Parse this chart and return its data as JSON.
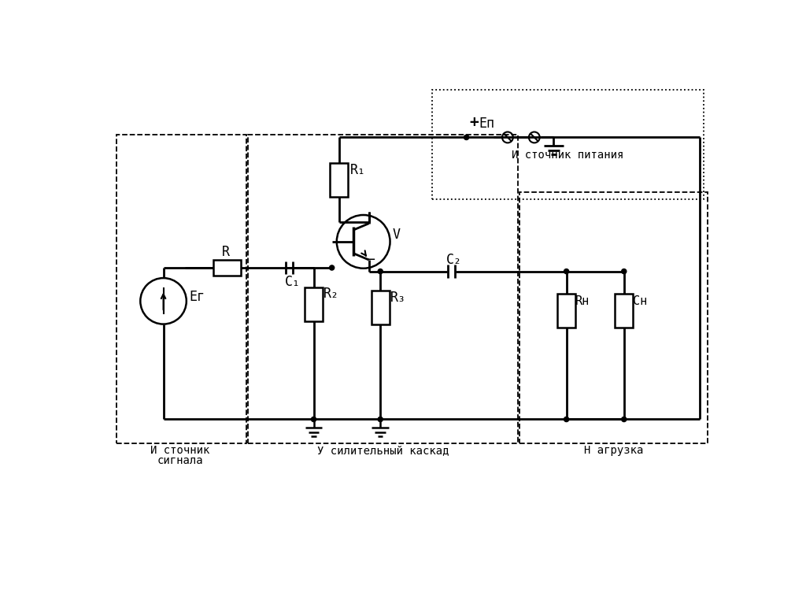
{
  "bg": "#ffffff",
  "labels": {
    "R": "R",
    "R1": "R₁",
    "R2": "R₂",
    "R3": "R₃",
    "C1": "C₁",
    "C2": "C₂",
    "Rn": "Rн",
    "Cn": "Cн",
    "Eg": "Eг",
    "Ep": "Eп",
    "V": "V",
    "minus": "−",
    "plus": "+",
    "source_line1": "И сточник",
    "source_line2": "сигнала",
    "amp_label": "У силительный каскад",
    "power_label": "И сточник питания",
    "load_label": "Н агрузка"
  }
}
